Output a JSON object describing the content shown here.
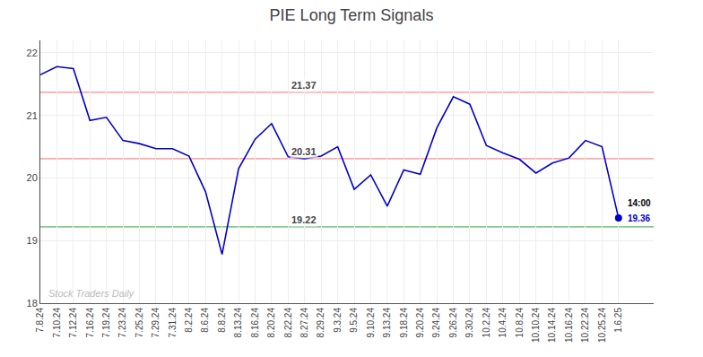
{
  "chart_data": {
    "type": "line",
    "title": "PIE Long Term Signals",
    "categories": [
      "7.8.24",
      "7.10.24",
      "7.12.24",
      "7.16.24",
      "7.19.24",
      "7.23.24",
      "7.25.24",
      "7.29.24",
      "7.31.24",
      "8.2.24",
      "8.6.24",
      "8.8.24",
      "8.13.24",
      "8.16.24",
      "8.20.24",
      "8.22.24",
      "8.27.24",
      "8.29.24",
      "9.3.24",
      "9.5.24",
      "9.10.24",
      "9.13.24",
      "9.18.24",
      "9.20.24",
      "9.24.24",
      "9.26.24",
      "9.30.24",
      "10.2.24",
      "10.4.24",
      "10.8.24",
      "10.10.24",
      "10.14.24",
      "10.16.24",
      "10.22.24",
      "10.25.24",
      "1.6.25"
    ],
    "values": [
      21.65,
      21.78,
      21.75,
      20.92,
      20.97,
      20.6,
      20.55,
      20.47,
      20.47,
      20.35,
      19.78,
      18.78,
      20.15,
      20.62,
      20.87,
      20.34,
      20.31,
      20.35,
      20.5,
      19.82,
      20.05,
      19.55,
      20.13,
      20.06,
      20.8,
      21.3,
      21.18,
      20.52,
      20.4,
      20.3,
      20.08,
      20.24,
      20.32,
      20.6,
      20.5,
      19.36
    ],
    "color": "#0000cc",
    "hlines": [
      {
        "value": 21.37,
        "label": "21.37",
        "color": "#ffaaaa"
      },
      {
        "value": 20.31,
        "label": "20.31",
        "color": "#ffaaaa"
      },
      {
        "value": 19.22,
        "label": "19.22",
        "color": "#88cc88"
      }
    ],
    "last_point_labels": [
      "14:00",
      "19.36"
    ],
    "watermark": "Stock Traders Daily",
    "ylim": [
      18.0,
      22.2
    ],
    "yticks": [
      18,
      19,
      20,
      21,
      22
    ],
    "grid": true
  }
}
